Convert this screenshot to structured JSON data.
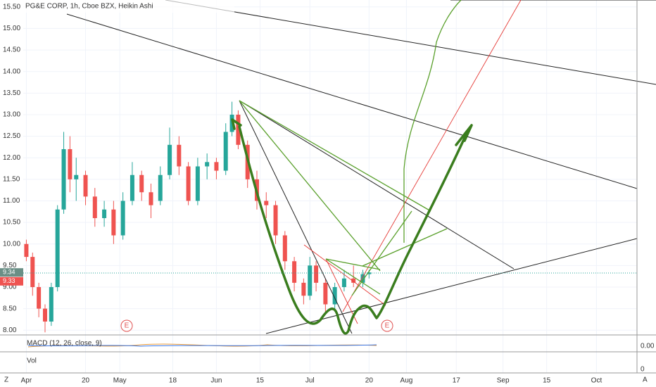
{
  "chart_data": {
    "type": "candlestick",
    "title": "PG&E CORP, 1h, Cboe BZX, Heikin Ashi",
    "up_color": "#26a69a",
    "down_color": "#ef5350",
    "x": [
      0,
      2,
      4,
      6,
      8,
      10,
      12,
      14,
      16,
      19,
      22,
      25,
      28,
      31,
      34,
      37,
      40,
      43,
      46,
      49,
      52,
      55,
      58,
      61,
      64,
      66,
      68,
      71,
      74,
      77,
      80,
      83,
      86,
      89,
      91,
      93,
      96,
      99,
      102,
      105,
      108,
      110
    ],
    "open": [
      10.0,
      9.7,
      9.0,
      8.5,
      8.2,
      9.0,
      10.8,
      12.2,
      11.5,
      11.6,
      11.1,
      10.6,
      10.8,
      10.2,
      11.0,
      11.6,
      11.2,
      11.0,
      11.6,
      12.3,
      11.8,
      11.0,
      11.8,
      11.9,
      11.7,
      12.6,
      13.0,
      12.3,
      11.5,
      11.0,
      10.9,
      10.2,
      9.6,
      9.1,
      8.8,
      9.5,
      9.1,
      8.6,
      9.0,
      9.2,
      9.1,
      9.3
    ],
    "high": [
      10.1,
      9.8,
      9.1,
      8.6,
      9.1,
      10.9,
      12.6,
      12.5,
      12.0,
      11.7,
      11.3,
      11.0,
      11.0,
      11.2,
      11.9,
      11.7,
      11.4,
      11.8,
      12.7,
      12.5,
      11.9,
      12.0,
      12.1,
      12.0,
      12.8,
      13.3,
      13.1,
      12.4,
      11.7,
      11.2,
      11.0,
      10.3,
      9.7,
      9.2,
      9.7,
      9.6,
      9.2,
      9.1,
      9.4,
      9.5,
      9.4,
      9.4
    ],
    "low": [
      9.6,
      8.8,
      8.3,
      7.95,
      8.1,
      8.9,
      10.7,
      11.2,
      11.0,
      10.9,
      10.4,
      10.4,
      10.0,
      10.1,
      10.9,
      11.0,
      10.6,
      10.9,
      11.5,
      11.6,
      10.9,
      10.9,
      11.5,
      11.5,
      11.6,
      12.5,
      12.2,
      11.3,
      10.8,
      10.6,
      10.0,
      9.4,
      8.9,
      8.6,
      8.7,
      8.9,
      8.4,
      8.5,
      8.9,
      9.0,
      9.0,
      9.2
    ],
    "close": [
      9.7,
      9.0,
      8.5,
      8.2,
      9.0,
      10.8,
      12.2,
      11.5,
      11.6,
      11.1,
      10.6,
      10.8,
      10.2,
      11.0,
      11.6,
      11.2,
      10.9,
      11.6,
      12.3,
      11.8,
      11.0,
      11.8,
      11.9,
      11.7,
      12.6,
      13.0,
      12.3,
      11.5,
      11.0,
      10.9,
      10.2,
      9.6,
      9.1,
      8.8,
      9.5,
      9.1,
      8.6,
      9.0,
      9.2,
      9.1,
      9.3,
      9.34
    ],
    "xlim": [
      -1,
      196
    ],
    "ylim": [
      7.89,
      15.66
    ],
    "xticks": [
      {
        "value": 0,
        "label": "Apr"
      },
      {
        "value": 19,
        "label": "20"
      },
      {
        "value": 30,
        "label": "May"
      },
      {
        "value": 47,
        "label": "18"
      },
      {
        "value": 61,
        "label": "Jun"
      },
      {
        "value": 75,
        "label": "15"
      },
      {
        "value": 91,
        "label": "Jul"
      },
      {
        "value": 110,
        "label": "20"
      },
      {
        "value": 122,
        "label": "Aug"
      },
      {
        "value": 138,
        "label": "17"
      },
      {
        "value": 153,
        "label": "Sep"
      },
      {
        "value": 167,
        "label": "15"
      },
      {
        "value": 183,
        "label": "Oct"
      }
    ],
    "yticks": [
      {
        "value": 8,
        "label": "8.00"
      },
      {
        "value": 8.5,
        "label": "8.50"
      },
      {
        "value": 9,
        "label": "9.00"
      },
      {
        "value": 9.5,
        "label": "9.50"
      },
      {
        "value": 10,
        "label": "10.00"
      },
      {
        "value": 10.5,
        "label": "10.50"
      },
      {
        "value": 11,
        "label": "11.00"
      },
      {
        "value": 11.5,
        "label": "11.50"
      },
      {
        "value": 12,
        "label": "12.00"
      },
      {
        "value": 12.5,
        "label": "12.50"
      },
      {
        "value": 13,
        "label": "13.00"
      },
      {
        "value": 13.5,
        "label": "13.50"
      },
      {
        "value": 14,
        "label": "14.00"
      },
      {
        "value": 14.5,
        "label": "14.50"
      },
      {
        "value": 15,
        "label": "15.00"
      },
      {
        "value": 15.5,
        "label": "15.50"
      }
    ],
    "last_price": 9.34,
    "bid_price": 9.33,
    "event_markers": [
      "E",
      "E"
    ],
    "macd_label": "MACD (12, 26, close, 9)",
    "macd_axis_label": "0.00",
    "volume_label": "Vol",
    "volume_axis_label": "0",
    "corner_left": "Z",
    "corner_right": "A"
  }
}
